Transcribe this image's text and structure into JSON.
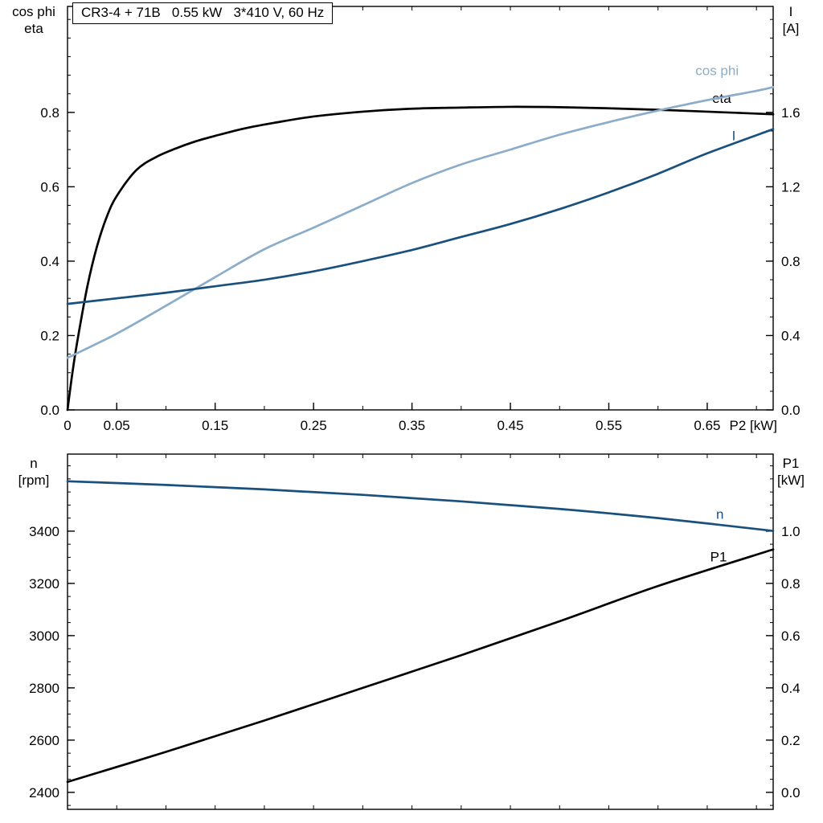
{
  "title_box": {
    "text": "CR3-4 + 71B   0.55 kW   3*410 V, 60 Hz"
  },
  "colors": {
    "frame": "#000000",
    "eta": "#000000",
    "cos_phi": "#8badc9",
    "current": "#19507d",
    "speed": "#19507d",
    "p1": "#000000"
  },
  "chart_data": [
    {
      "type": "line",
      "title": "CR3-4 + 71B   0.55 kW   3*410 V, 60 Hz",
      "xlabel": "P2 [kW]",
      "ylabel_left_lines": [
        "cos phi",
        "eta"
      ],
      "ylabel_right_lines": [
        "I",
        "[A]"
      ],
      "xlim": [
        0,
        0.717
      ],
      "ylim_left": [
        0,
        1.085
      ],
      "ylim_right": [
        0,
        2.17
      ],
      "grid": false,
      "x_ticks": {
        "labeled": [
          0,
          0.05,
          0.15,
          0.25,
          0.35,
          0.45,
          0.55,
          0.65
        ],
        "labels": [
          "0",
          "0.05",
          "0.15",
          "0.25",
          "0.35",
          "0.45",
          "0.55",
          "0.65"
        ],
        "minor_step": 0.05
      },
      "y_left_ticks": {
        "labeled": [
          0,
          0.2,
          0.4,
          0.6,
          0.8
        ],
        "labels": [
          "0.0",
          "0.2",
          "0.4",
          "0.6",
          "0.8"
        ],
        "minor_step": 0.05
      },
      "y_right_ticks": {
        "labeled": [
          0,
          0.4,
          0.8,
          1.2,
          1.6
        ],
        "labels": [
          "0.0",
          "0.4",
          "0.8",
          "1.2",
          "1.6"
        ],
        "minor_step": 0.1
      },
      "series": [
        {
          "name": "eta",
          "label": "eta",
          "axis": "left",
          "color": "eta",
          "label_pos": [
            0.655,
            0.826
          ],
          "x": [
            0,
            0.005,
            0.01,
            0.02,
            0.03,
            0.04,
            0.05,
            0.07,
            0.09,
            0.11,
            0.13,
            0.15,
            0.18,
            0.21,
            0.25,
            0.3,
            0.35,
            0.4,
            0.45,
            0.5,
            0.55,
            0.6,
            0.65,
            0.717
          ],
          "y": [
            0,
            0.1,
            0.185,
            0.33,
            0.44,
            0.52,
            0.575,
            0.645,
            0.68,
            0.703,
            0.722,
            0.737,
            0.757,
            0.772,
            0.789,
            0.802,
            0.81,
            0.813,
            0.815,
            0.814,
            0.811,
            0.807,
            0.802,
            0.795
          ]
        },
        {
          "name": "cos_phi",
          "label": "cos phi",
          "axis": "left",
          "color": "cos_phi",
          "label_pos": [
            0.638,
            0.9
          ],
          "x": [
            0,
            0.05,
            0.1,
            0.15,
            0.2,
            0.25,
            0.3,
            0.35,
            0.4,
            0.45,
            0.5,
            0.55,
            0.6,
            0.65,
            0.7,
            0.717
          ],
          "y": [
            0.14,
            0.205,
            0.28,
            0.357,
            0.432,
            0.49,
            0.55,
            0.61,
            0.66,
            0.7,
            0.74,
            0.774,
            0.805,
            0.833,
            0.858,
            0.868
          ]
        },
        {
          "name": "current",
          "label": "I",
          "axis": "right",
          "color": "current",
          "label_pos": [
            0.675,
            1.45
          ],
          "x": [
            0,
            0.05,
            0.1,
            0.15,
            0.2,
            0.25,
            0.3,
            0.35,
            0.4,
            0.45,
            0.5,
            0.55,
            0.6,
            0.65,
            0.717
          ],
          "y": [
            0.57,
            0.6,
            0.63,
            0.665,
            0.7,
            0.745,
            0.8,
            0.86,
            0.93,
            1.0,
            1.08,
            1.17,
            1.27,
            1.38,
            1.51
          ]
        }
      ]
    },
    {
      "type": "line",
      "xlabel": "",
      "ylabel_left_lines": [
        "n",
        "[rpm]"
      ],
      "ylabel_right_lines": [
        "P1",
        "[kW]"
      ],
      "xlim": [
        0,
        0.717
      ],
      "ylim_left": [
        2335,
        3695
      ],
      "ylim_right": [
        -0.065,
        1.295
      ],
      "grid": false,
      "x_ticks": {
        "labeled": [],
        "labels": [],
        "minor_step": 0.05
      },
      "y_left_ticks": {
        "labeled": [
          2400,
          2600,
          2800,
          3000,
          3200,
          3400
        ],
        "labels": [
          "2400",
          "2600",
          "2800",
          "3000",
          "3200",
          "3400"
        ],
        "minor_step": 50
      },
      "y_right_ticks": {
        "labeled": [
          0,
          0.2,
          0.4,
          0.6,
          0.8,
          1.0
        ],
        "labels": [
          "0.0",
          "0.2",
          "0.4",
          "0.6",
          "0.8",
          "1.0"
        ],
        "minor_step": 0.05
      },
      "series": [
        {
          "name": "speed",
          "label": "n",
          "axis": "left",
          "color": "speed",
          "label_pos": [
            0.659,
            3447
          ],
          "x": [
            0,
            0.1,
            0.2,
            0.3,
            0.4,
            0.5,
            0.6,
            0.717
          ],
          "y": [
            3591,
            3577,
            3560,
            3539,
            3514,
            3485,
            3450,
            3401
          ]
        },
        {
          "name": "p1",
          "label": "P1",
          "axis": "right",
          "color": "p1",
          "label_pos": [
            0.653,
            0.885
          ],
          "x": [
            0,
            0.1,
            0.2,
            0.3,
            0.4,
            0.5,
            0.6,
            0.717
          ],
          "y": [
            0.04,
            0.155,
            0.275,
            0.4,
            0.525,
            0.655,
            0.79,
            0.93
          ]
        }
      ]
    }
  ]
}
